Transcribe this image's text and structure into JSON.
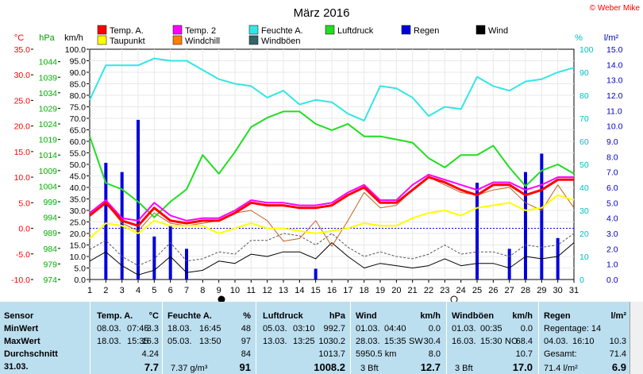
{
  "chart_data": {
    "type": "line",
    "title": "März 2016",
    "credit": "© Weber Mike",
    "legend": [
      {
        "name": "Temp. A.",
        "color": "#ff0000"
      },
      {
        "name": "Temp. 2",
        "color": "#ff00ff"
      },
      {
        "name": "Feuchte A.",
        "color": "#33e6e6"
      },
      {
        "name": "Luftdruck",
        "color": "#22dd22"
      },
      {
        "name": "Regen",
        "color": "#0000dd"
      },
      {
        "name": "Wind",
        "color": "#000000"
      },
      {
        "name": "Taupunkt",
        "color": "#ffff00"
      },
      {
        "name": "Windchill",
        "color": "#ff8000"
      },
      {
        "name": "Windböen",
        "color": "#336666"
      }
    ],
    "axes": {
      "temp": {
        "unit": "°C",
        "min": -10,
        "max": 35,
        "ticks": [
          "35.0",
          "30.0",
          "25.0",
          "20.0",
          "15.0",
          "10.0",
          "5.0",
          "0.0",
          "-5.0",
          "-10.0"
        ]
      },
      "pressure": {
        "unit": "hPa",
        "min": 974,
        "max": 1048,
        "ticks": [
          "1044",
          "1039",
          "1034",
          "1029",
          "1024",
          "1019",
          "1014",
          "1009",
          "1004",
          "999",
          "994",
          "989",
          "984",
          "979",
          "974"
        ]
      },
      "wind": {
        "unit": "km/h",
        "min": 0,
        "max": 100,
        "ticks": [
          "100.0",
          "95.0",
          "90.0",
          "85.0",
          "80.0",
          "75.0",
          "70.0",
          "65.0",
          "60.0",
          "55.0",
          "50.0",
          "45.0",
          "40.0",
          "35.0",
          "30.0",
          "25.0",
          "20.0",
          "15.0",
          "10.0",
          "5.0",
          "0.0"
        ]
      },
      "humidity": {
        "unit": "%",
        "min": 0,
        "max": 100,
        "ticks": [
          "100",
          "90",
          "80",
          "70",
          "60",
          "50",
          "40",
          "30",
          "20",
          "10",
          "0"
        ]
      },
      "rain": {
        "unit": "l/m²",
        "min": 0,
        "max": 15,
        "ticks": [
          "15.0",
          "14.0",
          "13.0",
          "12.0",
          "11.0",
          "10.0",
          "9.0",
          "8.0",
          "7.0",
          "6.0",
          "5.0",
          "4.0",
          "3.0",
          "2.0",
          "1.0",
          "0.0"
        ]
      },
      "x": {
        "min": 1,
        "max": 31,
        "ticks": [
          "1",
          "2",
          "3",
          "4",
          "5",
          "6",
          "7",
          "8",
          "9",
          "10",
          "11",
          "12",
          "13",
          "14",
          "15",
          "16",
          "17",
          "18",
          "19",
          "20",
          "21",
          "22",
          "23",
          "24",
          "25",
          "26",
          "27",
          "28",
          "29",
          "30",
          "31"
        ]
      }
    },
    "series": {
      "temp_a": {
        "x": [
          1,
          2,
          3,
          4,
          5,
          6,
          7,
          8,
          9,
          10,
          11,
          12,
          13,
          14,
          15,
          16,
          17,
          18,
          19,
          20,
          21,
          22,
          23,
          24,
          25,
          26,
          27,
          28,
          29,
          30,
          31
        ],
        "y": [
          2.5,
          5.0,
          1.5,
          0.5,
          4.0,
          1.5,
          1.0,
          1.5,
          1.5,
          3.0,
          5.0,
          4.5,
          4.5,
          4.0,
          4.0,
          4.5,
          6.5,
          8.0,
          5.0,
          5.0,
          7.5,
          10.0,
          9.0,
          7.5,
          6.5,
          8.5,
          8.5,
          6.5,
          7.5,
          9.5,
          9.5
        ]
      },
      "temp_2": {
        "x": [
          1,
          2,
          3,
          4,
          5,
          6,
          7,
          8,
          9,
          10,
          11,
          12,
          13,
          14,
          15,
          16,
          17,
          18,
          19,
          20,
          21,
          22,
          23,
          24,
          25,
          26,
          27,
          28,
          29,
          30,
          31
        ],
        "y": [
          3.0,
          5.5,
          2.0,
          1.5,
          5.0,
          2.5,
          1.5,
          2.0,
          2.0,
          3.5,
          5.5,
          5.0,
          5.0,
          4.5,
          4.5,
          5.0,
          7.0,
          8.5,
          5.5,
          5.5,
          8.5,
          10.5,
          9.5,
          8.5,
          7.5,
          9.0,
          9.0,
          7.5,
          8.5,
          10.0,
          10.0
        ]
      },
      "taupunkt": {
        "x": [
          1,
          2,
          3,
          4,
          5,
          6,
          7,
          8,
          9,
          10,
          11,
          12,
          13,
          14,
          15,
          16,
          17,
          18,
          19,
          20,
          21,
          22,
          23,
          24,
          25,
          26,
          27,
          28,
          29,
          30,
          31
        ],
        "y": [
          -2.0,
          1.0,
          0.5,
          -1.0,
          1.5,
          0.5,
          0.5,
          0.5,
          -1.0,
          0.0,
          1.0,
          0.0,
          0.0,
          -0.5,
          -1.0,
          -0.5,
          0.0,
          1.0,
          0.5,
          0.5,
          2.0,
          3.0,
          3.5,
          2.5,
          4.0,
          4.5,
          5.0,
          3.5,
          4.0,
          6.5,
          5.5
        ]
      },
      "windchill": {
        "x": [
          1,
          2,
          3,
          4,
          5,
          6,
          7,
          8,
          9,
          10,
          11,
          12,
          13,
          14,
          15,
          16,
          17,
          18,
          19,
          20,
          21,
          22,
          23,
          24,
          25,
          26,
          27,
          28,
          29,
          30,
          31
        ],
        "y": [
          2.5,
          5.0,
          1.0,
          -0.5,
          3.0,
          1.0,
          0.5,
          1.0,
          1.5,
          3.0,
          3.5,
          1.5,
          -2.5,
          -2.0,
          1.5,
          -3.5,
          1.5,
          7.0,
          4.0,
          4.5,
          7.5,
          10.0,
          8.5,
          7.0,
          6.5,
          7.5,
          8.0,
          5.0,
          3.5,
          8.5,
          4.0
        ]
      },
      "feuchte": {
        "x": [
          1,
          2,
          3,
          4,
          5,
          6,
          7,
          8,
          9,
          10,
          11,
          12,
          13,
          14,
          15,
          16,
          17,
          18,
          19,
          20,
          21,
          22,
          23,
          24,
          25,
          26,
          27,
          28,
          29,
          30,
          31
        ],
        "y": [
          78,
          93,
          93,
          93,
          96,
          95,
          95,
          91,
          87,
          85,
          84,
          79,
          82,
          76,
          78,
          77,
          72,
          69,
          84,
          83,
          79,
          71,
          75,
          74,
          88,
          84,
          82,
          86,
          87,
          90,
          92
        ]
      },
      "luftdruck": {
        "x": [
          1,
          2,
          3,
          4,
          5,
          6,
          7,
          8,
          9,
          10,
          11,
          12,
          13,
          14,
          15,
          16,
          17,
          18,
          19,
          20,
          21,
          22,
          23,
          24,
          25,
          26,
          27,
          28,
          29,
          30,
          31
        ],
        "y": [
          1020,
          1005,
          1003,
          999,
          994,
          999,
          1003,
          1014,
          1008,
          1015,
          1023,
          1026,
          1028,
          1028,
          1024,
          1022,
          1024,
          1020,
          1020,
          1019,
          1018,
          1013,
          1010,
          1014,
          1014,
          1017,
          1010,
          1004,
          1009,
          1011,
          1008
        ]
      },
      "wind": {
        "x": [
          1,
          2,
          3,
          4,
          5,
          6,
          7,
          8,
          9,
          10,
          11,
          12,
          13,
          14,
          15,
          16,
          17,
          18,
          19,
          20,
          21,
          22,
          23,
          24,
          25,
          26,
          27,
          28,
          29,
          30,
          31
        ],
        "y": [
          8,
          12,
          6,
          2,
          4,
          10,
          3,
          4,
          8,
          7,
          11,
          10,
          12,
          12,
          9,
          16,
          10,
          5,
          7,
          6,
          5,
          6,
          9,
          6,
          7,
          7,
          5,
          10,
          9,
          10,
          16
        ]
      },
      "windboeen": {
        "x": [
          1,
          2,
          3,
          4,
          5,
          6,
          7,
          8,
          9,
          10,
          11,
          12,
          13,
          14,
          15,
          16,
          17,
          18,
          19,
          20,
          21,
          22,
          23,
          24,
          25,
          26,
          27,
          28,
          29,
          30,
          31
        ],
        "y": [
          13,
          17,
          10,
          6,
          9,
          16,
          8,
          9,
          12,
          11,
          17,
          17,
          20,
          19,
          15,
          20,
          14,
          10,
          12,
          10,
          9,
          11,
          15,
          11,
          12,
          12,
          10,
          15,
          14,
          15,
          20
        ]
      },
      "regen": {
        "x": [
          2,
          3,
          4,
          5,
          6,
          7,
          15,
          25,
          27,
          28,
          29,
          30
        ],
        "y": [
          7.6,
          7.0,
          10.4,
          2.8,
          3.5,
          2.0,
          0.7,
          6.3,
          2.0,
          7.0,
          8.2,
          2.7
        ]
      }
    }
  },
  "stats": {
    "headers": {
      "sensor": "Sensor",
      "temp": "Temp. A.",
      "temp_unit": "°C",
      "hum": "Feuchte A.",
      "hum_unit": "%",
      "press": "Luftdruck",
      "press_unit": "hPa",
      "wind": "Wind",
      "wind_unit": "km/h",
      "gust": "Windböen",
      "gust_unit": "km/h",
      "rain": "Regen",
      "rain_unit": "l/m²"
    },
    "labels": {
      "min": "MinWert",
      "max": "MaxWert",
      "avg": "Durchschnitt",
      "date": "31.03."
    },
    "temp": {
      "min_date": "08.03.",
      "min_time": "07:45",
      "min_val": "-3.3",
      "max_date": "18.03.",
      "max_time": "15:35",
      "max_val": "16.3",
      "avg": "4.24",
      "current": "7.7"
    },
    "hum": {
      "min_date": "18.03.",
      "min_time": "16:45",
      "min_val": "48",
      "max_date": "05.03.",
      "max_time": "13:50",
      "max_val": "97",
      "avg": "84",
      "abs": "7.37 g/m³",
      "current": "91"
    },
    "press": {
      "min_date": "05.03.",
      "min_time": "03:10",
      "min_val": "992.7",
      "max_date": "13.03.",
      "max_time": "13:25",
      "max_val": "1030.2",
      "avg": "1013.7",
      "current": "1008.2"
    },
    "wind": {
      "min_date": "01.03.",
      "min_time": "04:40",
      "min_val": "0.0",
      "max_date": "28.03.",
      "max_time": "15:35",
      "max_dir": "SW",
      "max_val": "30.4",
      "dist": "5950.5 km",
      "avg": "8.0",
      "bft": "3 Bft",
      "current": "12.7"
    },
    "gust": {
      "min_date": "01.03.",
      "min_time": "00:35",
      "min_val": "0.0",
      "max_date": "16.03.",
      "max_time": "15:30",
      "max_dir": "NO",
      "max_val": "68.4",
      "avg": "10.7",
      "bft": "3 Bft",
      "current": "17.0"
    },
    "rain": {
      "days": "Regentage: 14",
      "max_date": "04.03.",
      "max_time": "16:10",
      "max_val": "10.3",
      "total_label": "Gesamt:",
      "total": "71.4",
      "current_text": "71.4 l/m²",
      "current": "6.9"
    }
  }
}
